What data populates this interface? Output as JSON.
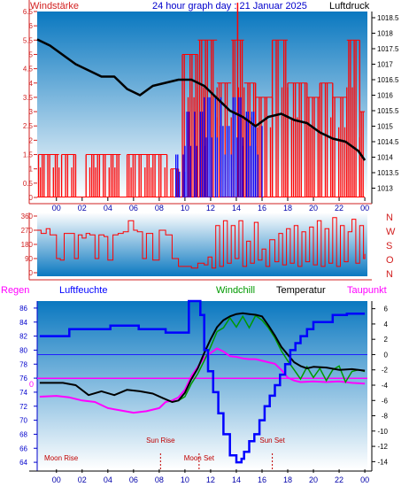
{
  "header": {
    "left_label": "Windstärke",
    "title": "24 hour graph day : 21 Januar 2025",
    "right_label": "Luftdruck"
  },
  "panel2": {
    "compass": [
      "N",
      "W",
      "S",
      "O",
      "N"
    ]
  },
  "legend3": {
    "regen": "Regen",
    "luftfeuchte": "Luftfeuchte",
    "windchill": "Windchill",
    "temperatur": "Temperatur",
    "taupunkt": "Taupunkt",
    "regen_zero": "0"
  },
  "events": [
    {
      "label": "Moon Rise",
      "hour": 0.2
    },
    {
      "label": "Sun Rise",
      "hour": 8.1
    },
    {
      "label": "Moon Set",
      "hour": 11.1
    },
    {
      "label": "Sun Set",
      "hour": 16.8
    }
  ],
  "colors": {
    "gradient_top": "#0a78c0",
    "gradient_bottom": "#ffffff",
    "frame": "#d22020",
    "gust_red": "#ff0000",
    "wind_blue": "#0000ff",
    "pressure_black": "#000000",
    "humidity_blue": "#0000ff",
    "temperature_black": "#000000",
    "windchill_green": "#009900",
    "dewpoint_magenta": "#ff00ff",
    "hline_blue": "#2020ff",
    "hline_magenta": "#ff00ff",
    "axis_left_blue": "#0000cc"
  },
  "chart_data": [
    {
      "type": "line",
      "name": "panel-wind-pressure",
      "x_unit": "hour",
      "xlim": [
        -1.5,
        24.2
      ],
      "x_ticks": [
        "00",
        "02",
        "04",
        "06",
        "08",
        "10",
        "12",
        "14",
        "16",
        "18",
        "20",
        "22",
        "00"
      ],
      "wind_ylim": [
        0,
        6.5
      ],
      "wind_ticks": [
        "0",
        "0.5",
        "1",
        "1.5",
        "2",
        "2.5",
        "3",
        "3.5",
        "4",
        "4.5",
        "5",
        "5.5",
        "6",
        "6.5"
      ],
      "pressure_ylim": [
        1012.7,
        1018.7
      ],
      "pressure_ticks": [
        "1013",
        "1013.5",
        "1014",
        "1014.5",
        "1015",
        "1015.5",
        "1016",
        "1016.5",
        "1017",
        "1017.5",
        "1018",
        "1018.5"
      ],
      "gust_segments": [
        [
          -1.4,
          0.2,
          1.5
        ],
        [
          0.4,
          1.5,
          1.5
        ],
        [
          2.3,
          5.0,
          1.5
        ],
        [
          5.5,
          8.6,
          1.5
        ],
        [
          8.9,
          9.5,
          1.0
        ],
        [
          9.8,
          11.0,
          5.0
        ],
        [
          11.0,
          12.5,
          5.5
        ],
        [
          12.5,
          13.6,
          4.0
        ],
        [
          13.6,
          14.6,
          5.5
        ],
        [
          14.6,
          15.5,
          4.0
        ],
        [
          15.5,
          16.8,
          3.5
        ],
        [
          16.8,
          18.0,
          5.5
        ],
        [
          18.0,
          19.5,
          4.0
        ],
        [
          19.5,
          20.5,
          3.5
        ],
        [
          20.5,
          21.5,
          4.0
        ],
        [
          21.5,
          22.6,
          3.5
        ],
        [
          22.6,
          23.6,
          5.5
        ],
        [
          23.6,
          24.0,
          3.0
        ]
      ],
      "gust_peak": {
        "hour": 14.1,
        "value": 7.5
      },
      "wind_segments": [
        [
          9.3,
          10.0,
          1.5
        ],
        [
          10.0,
          11.5,
          3.0
        ],
        [
          11.5,
          12.8,
          3.5
        ],
        [
          12.8,
          13.6,
          2.5
        ],
        [
          13.6,
          14.5,
          3.5
        ],
        [
          14.5,
          15.5,
          3.0
        ],
        [
          15.5,
          16.0,
          2.5
        ]
      ],
      "pressure": {
        "x": [
          -1.5,
          -0.5,
          0.5,
          1.5,
          2.5,
          3.5,
          4.5,
          5.5,
          6.5,
          7.5,
          8.5,
          9.5,
          10.5,
          11.5,
          12.5,
          13.5,
          14.5,
          15.5,
          16.5,
          17.5,
          18.5,
          19.5,
          20.5,
          21.5,
          22.5,
          23.5,
          24.0
        ],
        "y": [
          1017.8,
          1017.6,
          1017.3,
          1017.0,
          1016.8,
          1016.6,
          1016.6,
          1016.2,
          1016.0,
          1016.3,
          1016.4,
          1016.5,
          1016.5,
          1016.3,
          1015.9,
          1015.5,
          1015.3,
          1015.0,
          1015.3,
          1015.4,
          1015.2,
          1015.1,
          1014.8,
          1014.6,
          1014.5,
          1014.2,
          1013.9
        ]
      }
    },
    {
      "type": "line",
      "name": "panel-wind-direction",
      "x_unit": "hour",
      "xlim": [
        -1.5,
        24.2
      ],
      "ylim": [
        0,
        360
      ],
      "y_ticks": [
        "0",
        "90",
        "180",
        "270",
        "360"
      ],
      "direction": {
        "x": [
          -1.5,
          -1.2,
          -0.8,
          -0.5,
          0.0,
          0.3,
          0.6,
          1.0,
          1.4,
          1.7,
          2.0,
          2.3,
          2.6,
          3.0,
          3.3,
          3.7,
          4.0,
          4.4,
          4.8,
          5.2,
          5.6,
          6.0,
          6.3,
          6.7,
          7.0,
          7.5,
          8.0,
          8.5,
          9.0,
          9.5,
          10.0,
          10.5,
          11.0,
          11.5,
          11.8,
          12.1,
          12.4,
          12.7,
          13.0,
          13.3,
          13.6,
          13.9,
          14.2,
          14.5,
          14.8,
          15.1,
          15.4,
          15.7,
          16.0,
          16.3,
          16.6,
          17.0,
          17.3,
          17.6,
          17.9,
          18.2,
          18.5,
          18.8,
          19.1,
          19.4,
          19.7,
          20.0,
          20.3,
          20.6,
          20.9,
          21.2,
          21.5,
          21.8,
          22.1,
          22.4,
          22.7,
          23.0,
          23.3,
          23.6,
          23.9,
          24.0
        ],
        "y": [
          270,
          250,
          280,
          240,
          90,
          80,
          250,
          250,
          90,
          240,
          220,
          250,
          240,
          90,
          240,
          230,
          80,
          240,
          250,
          260,
          330,
          270,
          260,
          90,
          250,
          80,
          270,
          240,
          90,
          40,
          40,
          30,
          60,
          50,
          100,
          30,
          300,
          40,
          330,
          60,
          300,
          90,
          330,
          40,
          200,
          60,
          320,
          80,
          150,
          40,
          210,
          70,
          250,
          50,
          280,
          60,
          300,
          40,
          260,
          70,
          290,
          50,
          330,
          40,
          280,
          60,
          350,
          40,
          300,
          70,
          260,
          340,
          60,
          300,
          90,
          120
        ]
      }
    },
    {
      "type": "line",
      "name": "panel-temperature-humidity",
      "x_unit": "hour",
      "xlim": [
        -1.5,
        24.2
      ],
      "humidity_ylim": [
        63,
        87
      ],
      "humidity_ticks": [
        "64",
        "66",
        "68",
        "70",
        "72",
        "74",
        "76",
        "78",
        "80",
        "82",
        "84",
        "86"
      ],
      "temp_ylim": [
        -15,
        7
      ],
      "temp_ticks": [
        "-14",
        "-12",
        "-10",
        "-8",
        "-6",
        "-4",
        "-2",
        "0",
        "2",
        "4",
        "6"
      ],
      "humidity": {
        "x": [
          -1.3,
          0.8,
          1.0,
          4.0,
          4.2,
          6.2,
          6.4,
          8.3,
          8.5,
          10.2,
          10.3,
          11.0,
          11.2,
          11.5,
          11.8,
          12.2,
          12.6,
          13.0,
          13.5,
          14.0,
          14.4,
          14.6,
          15.0,
          15.4,
          15.8,
          16.2,
          16.6,
          17.0,
          17.4,
          17.8,
          18.2,
          18.6,
          19.0,
          19.5,
          20.0,
          21.0,
          21.5,
          22.4,
          22.6,
          24.0
        ],
        "y": [
          82,
          82,
          83,
          83,
          83.5,
          83.5,
          83,
          83,
          82.5,
          82.5,
          87,
          87,
          85,
          80,
          77,
          74,
          71,
          68,
          65,
          64,
          64.5,
          65.5,
          67,
          68,
          70,
          72,
          73.5,
          75,
          76.5,
          78,
          80,
          81,
          82,
          83,
          84,
          84,
          85,
          85,
          85.2,
          85.2
        ]
      },
      "temperature": {
        "x": [
          -1.3,
          0.5,
          1.5,
          2.5,
          3.5,
          4.5,
          5.5,
          6.5,
          7.5,
          8.3,
          9.0,
          9.5,
          10.0,
          10.5,
          11.0,
          11.5,
          12.0,
          12.5,
          13.0,
          13.5,
          14.0,
          14.5,
          15.0,
          15.5,
          16.0,
          16.5,
          17.0,
          17.5,
          18.0,
          18.5,
          19.0,
          19.5,
          20.0,
          21.0,
          22.0,
          23.0,
          24.0
        ],
        "y": [
          -3.7,
          -3.7,
          -4.0,
          -5.3,
          -4.8,
          -5.3,
          -4.6,
          -4.8,
          -5.1,
          -5.7,
          -6.2,
          -6.0,
          -5.0,
          -3.2,
          -1.8,
          0.2,
          2.0,
          3.6,
          4.5,
          5.0,
          5.3,
          5.4,
          5.3,
          5.2,
          5.0,
          3.8,
          2.5,
          1.0,
          0.0,
          -1.0,
          -1.5,
          -1.8,
          -1.6,
          -1.7,
          -2.0,
          -1.9,
          -2.1
        ]
      },
      "windchill": {
        "x": [
          9.5,
          10.0,
          10.5,
          11.0,
          11.5,
          12.0,
          12.5,
          13.0,
          13.5,
          14.0,
          14.5,
          15.0,
          15.5,
          16.0,
          16.5,
          17.0,
          17.5,
          18.0,
          18.5,
          19.0,
          19.5,
          20.0,
          20.5,
          21.0,
          21.5,
          22.0,
          22.5,
          23.0,
          23.5,
          24.0
        ],
        "y": [
          -6.0,
          -5.5,
          -3.8,
          -2.5,
          -0.8,
          1.0,
          3.0,
          3.5,
          4.8,
          3.6,
          5.0,
          3.5,
          5.1,
          4.5,
          3.5,
          2.2,
          0.5,
          -0.8,
          -2.0,
          -3.2,
          -1.6,
          -3.0,
          -1.8,
          -3.4,
          -2.0,
          -1.5,
          -3.6,
          -2.2,
          -2.0,
          -2.2
        ]
      },
      "dewpoint": {
        "x": [
          -1.3,
          0.0,
          1.0,
          2.0,
          3.0,
          4.0,
          5.0,
          6.0,
          7.0,
          8.0,
          8.5,
          9.0,
          9.5,
          10.0,
          10.5,
          11.0,
          11.5,
          12.0,
          12.5,
          13.0,
          13.5,
          14.0,
          14.5,
          15.0,
          15.5,
          16.0,
          16.5,
          17.0,
          17.5,
          18.0,
          18.5,
          19.0,
          20.0,
          21.0,
          22.0,
          23.0,
          24.0
        ],
        "y": [
          -5.5,
          -5.4,
          -5.6,
          -6.0,
          -6.2,
          -7.0,
          -7.3,
          -7.6,
          -7.4,
          -7.0,
          -6.2,
          -6.0,
          -5.6,
          -4.6,
          -2.8,
          -1.6,
          -0.4,
          0.2,
          0.8,
          0.4,
          -0.2,
          -0.3,
          -0.5,
          -0.6,
          -0.6,
          -0.8,
          -1.0,
          -1.2,
          -2.0,
          -3.0,
          -3.4,
          -3.6,
          -3.5,
          -3.6,
          -3.5,
          -3.7,
          -3.8
        ]
      },
      "regen_line": 0,
      "blue_hline": 0
    }
  ]
}
